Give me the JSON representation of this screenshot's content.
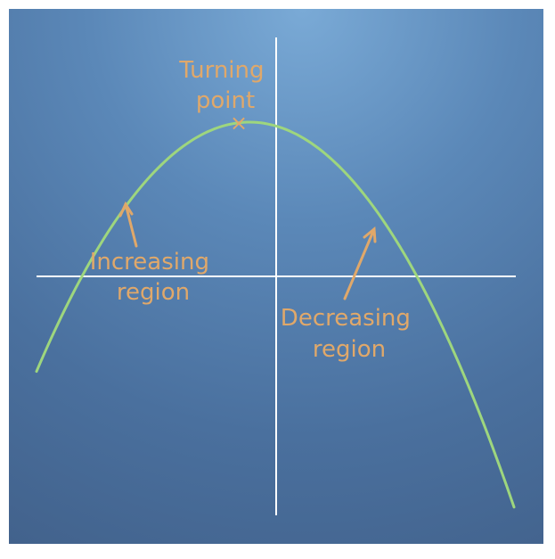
{
  "diagram": {
    "labels": {
      "turning_point": [
        "Turning",
        "point"
      ],
      "increasing": [
        "Increasing",
        "region"
      ],
      "decreasing": [
        "Decreasing",
        "region"
      ]
    },
    "marker_glyph": "×",
    "colors": {
      "background_top": "#7aaad6",
      "background_bottom": "#42628c",
      "axes": "#ffffff",
      "curve": "#9ed67e",
      "annotation": "#e0a86a"
    }
  }
}
